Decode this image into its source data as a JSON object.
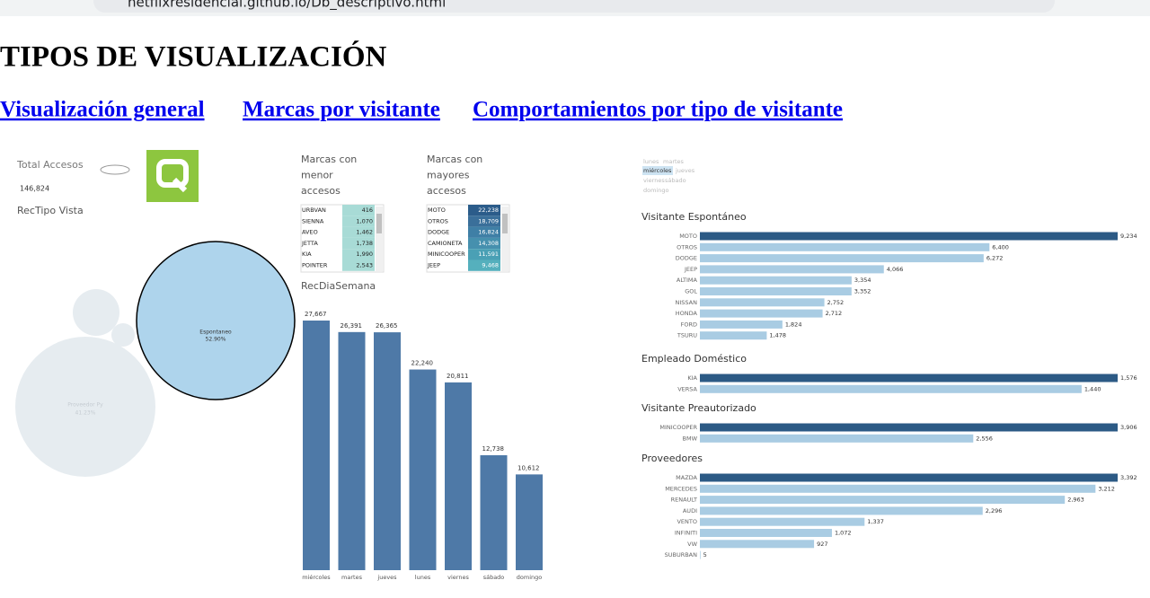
{
  "browser": {
    "url": "netflixresidencial.github.io/Db_descriptivo.html"
  },
  "header": {
    "title": "TIPOS DE VISUALIZACIÓN",
    "links": [
      "Visualización general",
      "Marcas por visitante",
      "Comportamientos por tipo de visitante"
    ]
  },
  "kpi": {
    "label": "Total Accesos",
    "value": "146,824"
  },
  "bubbles": {
    "title": "RecTipo Vista",
    "items": [
      {
        "name": "Espontaneo",
        "pct": "52.90%"
      },
      {
        "name": "Proveedor Py",
        "pct": "41.23%"
      }
    ]
  },
  "tables": [
    {
      "title_lines": [
        "Marcas con",
        "menor",
        "accesos"
      ],
      "cell_colors": [
        "#a8dbd6",
        "#a8dbd6",
        "#a8dbd6",
        "#a8dbd6",
        "#a8dbd6",
        "#a8dbd6"
      ],
      "rows": [
        [
          "URBVAN",
          "416"
        ],
        [
          "SIENNA",
          "1,070"
        ],
        [
          "AVEO",
          "1,462"
        ],
        [
          "JETTA",
          "1,738"
        ],
        [
          "KIA",
          "1,990"
        ],
        [
          "POINTER",
          "2,543"
        ]
      ]
    },
    {
      "title_lines": [
        "Marcas con",
        "mayores",
        "accesos"
      ],
      "cell_colors": [
        "#2b5c8a",
        "#3a6f9a",
        "#3f7fa6",
        "#4690ae",
        "#4aa0b5",
        "#55b0bd"
      ],
      "rows": [
        [
          "MOTO",
          "22,238"
        ],
        [
          "OTROS",
          "18,709"
        ],
        [
          "DODGE",
          "16,824"
        ],
        [
          "CAMIONETA",
          "14,308"
        ],
        [
          "MINICOOPER",
          "11,591"
        ],
        [
          "JEEP",
          "9,468"
        ]
      ]
    }
  ],
  "filter": {
    "days": [
      "lunes",
      "martes",
      "miércoles",
      "jueves",
      "viernes",
      "sábado",
      "domingo"
    ]
  },
  "chart_data": [
    {
      "type": "bar",
      "title": "RecDiaSemana",
      "color": "#4e79a7",
      "categories": [
        "miércoles",
        "martes",
        "jueves",
        "lunes",
        "viernes",
        "sábado",
        "domingo"
      ],
      "values": [
        27667,
        26391,
        26365,
        22240,
        20811,
        12738,
        10612
      ],
      "value_labels": [
        "27,667",
        "26,391",
        "26,365",
        "22,240",
        "20,811",
        "12,738",
        "10,612"
      ]
    },
    {
      "type": "hbar",
      "title": "Visitante Espontáneo",
      "color": "#a9cce3",
      "top_color": "#2c5a85",
      "categories": [
        "MOTO",
        "OTROS",
        "DODGE",
        "JEEP",
        "ALTIMA",
        "GOL",
        "NISSAN",
        "HONDA",
        "FORD",
        "TSURU"
      ],
      "values": [
        9234,
        6400,
        6272,
        4066,
        3354,
        3352,
        2752,
        2712,
        1824,
        1478
      ],
      "value_labels": [
        "9,234",
        "6,400",
        "6,272",
        "4,066",
        "3,354",
        "3,352",
        "2,752",
        "2,712",
        "1,824",
        "1,478"
      ]
    },
    {
      "type": "hbar",
      "title": "Empleado Doméstico",
      "color": "#a9cce3",
      "top_color": "#2c5a85",
      "categories": [
        "KIA",
        "VERSA"
      ],
      "values": [
        1576,
        1440
      ],
      "value_labels": [
        "1,576",
        "1,440"
      ]
    },
    {
      "type": "hbar",
      "title": "Visitante Preautorizado",
      "color": "#a9cce3",
      "top_color": "#2c5a85",
      "categories": [
        "MINICOOPER",
        "BMW"
      ],
      "values": [
        3906,
        2556
      ],
      "value_labels": [
        "3,906",
        "2,556"
      ]
    },
    {
      "type": "hbar",
      "title": "Proveedores",
      "color": "#a9cce3",
      "top_color": "#2c5a85",
      "categories": [
        "MAZDA",
        "MERCEDES",
        "RENAULT",
        "AUDI",
        "VENTO",
        "INFINITI",
        "VW",
        "SUBURBAN"
      ],
      "values": [
        3392,
        3212,
        2963,
        2296,
        1337,
        1072,
        927,
        5
      ],
      "value_labels": [
        "3,392",
        "3,212",
        "2,963",
        "2,296",
        "1,337",
        "1,072",
        "927",
        "5"
      ]
    }
  ]
}
